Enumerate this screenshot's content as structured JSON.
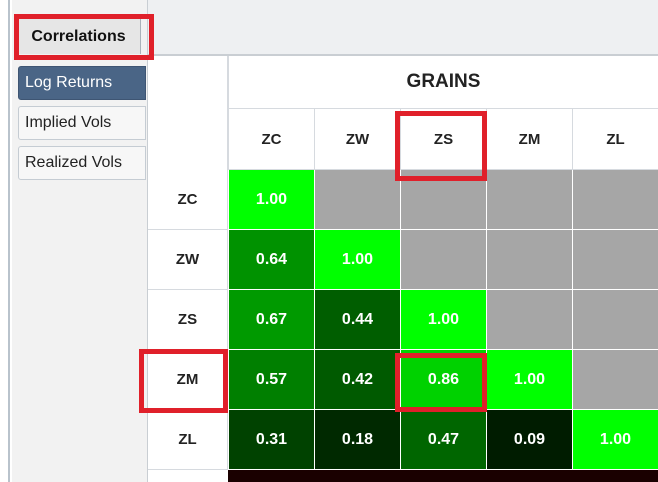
{
  "tabs": {
    "top": "Correlations",
    "side": [
      {
        "label": "Log Returns",
        "active": true
      },
      {
        "label": "Implied Vols",
        "active": false
      },
      {
        "label": "Realized Vols",
        "active": false
      }
    ]
  },
  "matrix": {
    "group_title": "GRAINS",
    "columns": [
      "ZC",
      "ZW",
      "ZS",
      "ZM",
      "ZL"
    ],
    "rows": [
      "ZC",
      "ZW",
      "ZS",
      "ZM",
      "ZL"
    ],
    "values": [
      [
        "1.00",
        null,
        null,
        null,
        null
      ],
      [
        "0.64",
        "1.00",
        null,
        null,
        null
      ],
      [
        "0.67",
        "0.44",
        "1.00",
        null,
        null
      ],
      [
        "0.57",
        "0.42",
        "0.86",
        "1.00",
        null
      ],
      [
        "0.31",
        "0.18",
        "0.47",
        "0.09",
        "1.00"
      ]
    ]
  },
  "colors": {
    "active_tab": "#4a6586",
    "highlight": "#e0202a",
    "blank_cell": "#a6a6a6",
    "high_corr": "#00ff00"
  }
}
